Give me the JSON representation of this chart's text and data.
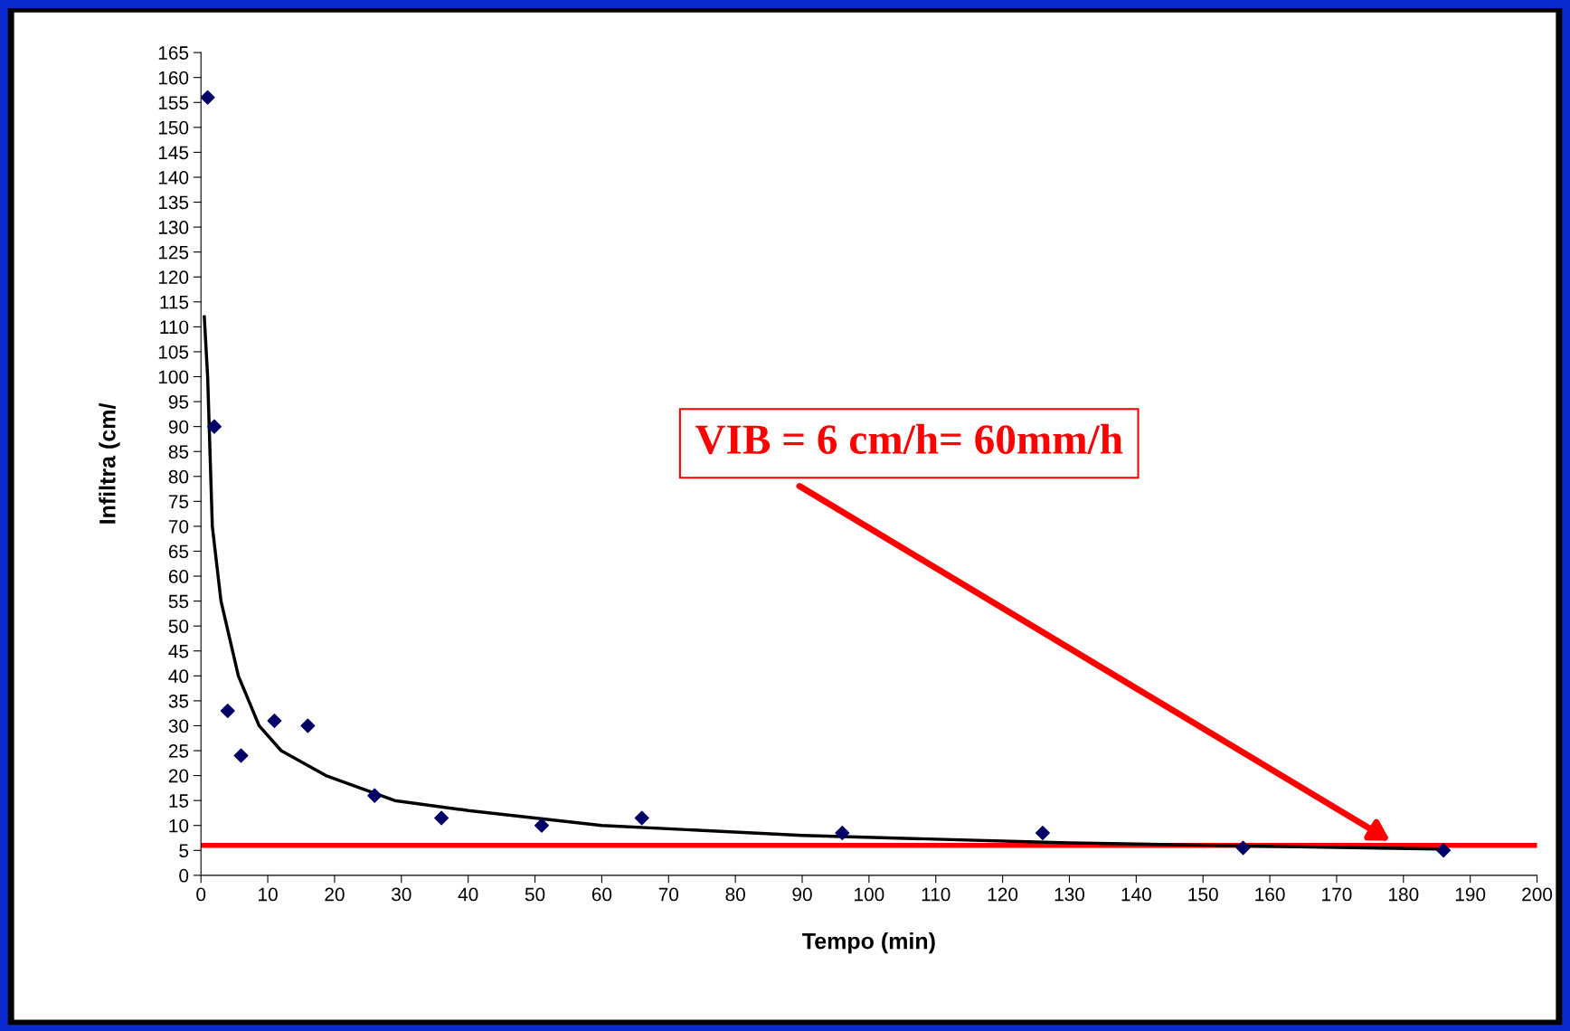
{
  "chart_data": {
    "type": "scatter",
    "xlabel": "Tempo (min)",
    "ylabel": "Infiltra (cm/",
    "xlim": [
      0,
      200
    ],
    "xticks": [
      0,
      10,
      20,
      30,
      40,
      50,
      60,
      70,
      80,
      90,
      100,
      110,
      120,
      130,
      140,
      150,
      160,
      170,
      180,
      190,
      200
    ],
    "ylim": [
      0,
      165
    ],
    "yticks": [
      0,
      5,
      10,
      15,
      20,
      25,
      30,
      35,
      40,
      45,
      50,
      55,
      60,
      65,
      70,
      75,
      80,
      85,
      90,
      95,
      100,
      105,
      110,
      115,
      120,
      125,
      130,
      135,
      140,
      145,
      150,
      155,
      160,
      165
    ],
    "grid": false,
    "series": [
      {
        "type": "scatter",
        "marker": "diamond",
        "color": "#000066",
        "x": [
          1,
          2,
          4,
          6,
          11,
          16,
          26,
          36,
          51,
          66,
          96,
          126,
          156,
          186
        ],
        "values": [
          156,
          90,
          33,
          24,
          31,
          30,
          16,
          11.5,
          10,
          11.5,
          8.5,
          8.5,
          5.5,
          5
        ]
      },
      {
        "type": "line",
        "marker": "none",
        "line_style": "solid",
        "color": "#000000",
        "x": [
          0.5,
          1,
          1.7,
          3,
          5.6,
          8.7,
          12,
          18.7,
          29,
          40,
          60,
          90,
          130,
          160,
          185
        ],
        "values": [
          112,
          100,
          70,
          55,
          40,
          30,
          25,
          20,
          15,
          13,
          10,
          8,
          6.5,
          5.8,
          5.3
        ]
      }
    ],
    "ref_lines": [
      {
        "axis": "y",
        "value": 6,
        "color": "#ff0000",
        "line_style": "solid"
      }
    ],
    "annotations": [
      "VIB = 6 cm/h= 60mm/h"
    ]
  }
}
